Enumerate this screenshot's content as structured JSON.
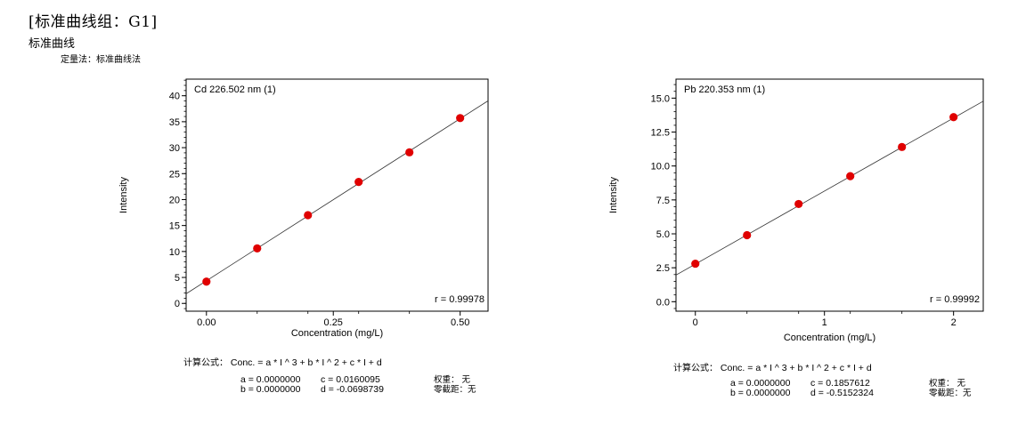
{
  "header": {
    "title": "[标准曲线组：G1]",
    "subtitle": "标准曲线",
    "method": "定量法：标准曲线法"
  },
  "chart_data": [
    {
      "type": "scatter",
      "title": "Cd 226.502 nm (1)",
      "xlabel": "Concentration (mg/L)",
      "ylabel": "Intensity",
      "xlim": [
        -0.04,
        0.555
      ],
      "ylim": [
        -1.5,
        43.2
      ],
      "xticks": [
        0.0,
        0.25,
        0.5
      ],
      "xtick_labels": [
        "0.00",
        "0.25",
        "0.50"
      ],
      "xminor": [
        0.1,
        0.2,
        0.3,
        0.4
      ],
      "yticks": [
        0,
        5,
        10,
        15,
        20,
        25,
        30,
        35,
        40
      ],
      "ytick_labels": [
        "0",
        "5",
        "10",
        "15",
        "20",
        "25",
        "30",
        "35",
        "40"
      ],
      "grid": false,
      "x": [
        0.0,
        0.1,
        0.2,
        0.3,
        0.4,
        0.5
      ],
      "y": [
        4.2,
        10.6,
        17.0,
        23.4,
        29.1,
        35.7
      ],
      "fit_line": {
        "slope": 62.46,
        "intercept": 4.36
      },
      "annotation": "r = 0.99978",
      "point_color": "#e00000"
    },
    {
      "type": "scatter",
      "title": "Pb 220.353 nm (1)",
      "xlabel": "Concentration (mg/L)",
      "ylabel": "Intensity",
      "xlim": [
        -0.15,
        2.23
      ],
      "ylim": [
        -0.7,
        16.4
      ],
      "xticks": [
        0,
        1,
        2
      ],
      "xtick_labels": [
        "0",
        "1",
        "2"
      ],
      "xminor": [
        0.4,
        0.8,
        1.2,
        1.6
      ],
      "yticks": [
        0.0,
        2.5,
        5.0,
        7.5,
        10.0,
        12.5,
        15.0
      ],
      "ytick_labels": [
        "0.0",
        "2.5",
        "5.0",
        "7.5",
        "10.0",
        "12.5",
        "15.0"
      ],
      "grid": false,
      "x": [
        0.0,
        0.4,
        0.8,
        1.2,
        1.6,
        2.0
      ],
      "y": [
        2.8,
        4.9,
        7.2,
        9.25,
        11.4,
        13.6
      ],
      "fit_line": {
        "slope": 5.383,
        "intercept": 2.77
      },
      "annotation": "r = 0.99992",
      "point_color": "#e00000"
    }
  ],
  "formulas": [
    {
      "label": "计算公式：",
      "expr": "Conc. = a * I ^ 3 + b * I ^ 2 + c * I + d",
      "a": "a = 0.0000000",
      "b": "b = 0.0000000",
      "c": "c = 0.0160095",
      "d": "d = -0.0698739",
      "weight": "权重：  无",
      "zero": "零截距：无"
    },
    {
      "label": "计算公式：",
      "expr": "Conc. = a * I ^ 3 + b * I ^ 2 + c * I + d",
      "a": "a = 0.0000000",
      "b": "b = 0.0000000",
      "c": "c = 0.1857612",
      "d": "d = -0.5152324",
      "weight": "权重：  无",
      "zero": "零截距：无"
    }
  ]
}
